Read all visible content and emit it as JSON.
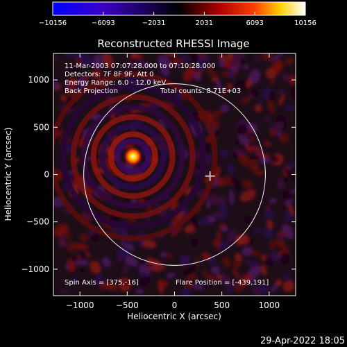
{
  "colorbar": {
    "ticks": [
      "−10156",
      "−6093",
      "−2031",
      "2031",
      "6093",
      "10156"
    ],
    "range": [
      -10156,
      10156
    ],
    "colors": [
      "#0000ff",
      "#3b00c8",
      "#000000",
      "#b00000",
      "#ff4000",
      "#ffd000",
      "#ffffff"
    ]
  },
  "chart_data": {
    "type": "heatmap",
    "title": "Reconstructed RHESSI Image",
    "xlabel": "Heliocentric X (arcsec)",
    "ylabel": "Heliocentric Y (arcsec)",
    "xlim": [
      -1280,
      1280
    ],
    "ylim": [
      -1280,
      1280
    ],
    "xticks": [
      -1000,
      -500,
      0,
      500,
      1000
    ],
    "yticks": [
      -1000,
      -500,
      0,
      500,
      1000
    ],
    "xtick_labels": [
      "−1000",
      "−500",
      "0",
      "500",
      "1000"
    ],
    "ytick_labels": [
      "−1000",
      "−500",
      "0",
      "500",
      "1000"
    ],
    "source": {
      "x": -439,
      "y": 191
    },
    "solar_limb": {
      "center": [
        0,
        0
      ],
      "radius": 960
    },
    "spin_axis_marker": {
      "x": 375,
      "y": -16
    },
    "annotations": [
      "11-Mar-2003 07:07:28.000 to 07:10:28.000",
      "Detectors: 7F 8F 9F, Att 0",
      "Energy Range: 6.0 - 12.0 keV",
      "Back Projection",
      "Total counts: 8.71E+03"
    ],
    "footer_left": "Spin Axis = [375,-16]",
    "footer_right": "Flare Position = [-439,191]"
  },
  "date_stamp": "29-Apr-2022 18:05"
}
